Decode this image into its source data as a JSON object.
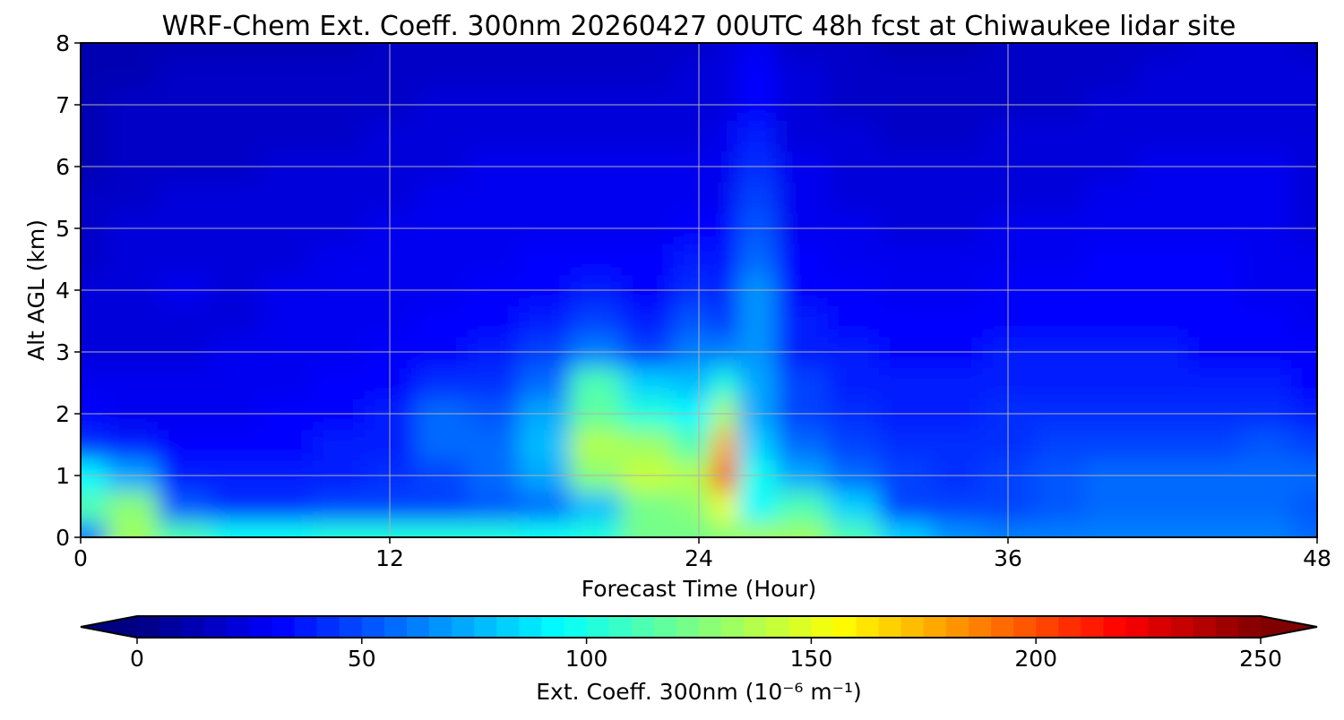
{
  "chart_data": {
    "type": "heatmap",
    "title": "WRF-Chem Ext. Coeff. 300nm  20260427 00UTC 48h fcst at Chiwaukee lidar site",
    "xlabel": "Forecast Time (Hour)",
    "ylabel": "Alt AGL (km)",
    "xlim": [
      0,
      48
    ],
    "ylim": [
      0,
      8
    ],
    "xticks": [
      0,
      12,
      24,
      36,
      48
    ],
    "yticks": [
      0,
      1,
      2,
      3,
      4,
      5,
      6,
      7,
      8
    ],
    "grid": true,
    "x": [
      0,
      2,
      4,
      6,
      8,
      10,
      12,
      14,
      16,
      18,
      20,
      22,
      24,
      25,
      26,
      28,
      30,
      32,
      34,
      36,
      38,
      40,
      42,
      44,
      46,
      48
    ],
    "y": [
      0,
      0.5,
      1,
      1.5,
      2,
      2.5,
      3,
      3.5,
      4,
      4.5,
      5,
      5.5,
      6,
      6.5,
      7,
      7.5,
      8
    ],
    "z": [
      [
        60,
        130,
        110,
        95,
        95,
        100,
        100,
        100,
        100,
        95,
        100,
        120,
        120,
        125,
        130,
        130,
        110,
        80,
        65,
        60,
        60,
        60,
        60,
        60,
        60,
        55
      ],
      [
        110,
        125,
        50,
        40,
        40,
        45,
        45,
        45,
        50,
        55,
        75,
        120,
        125,
        150,
        90,
        110,
        80,
        45,
        45,
        45,
        50,
        55,
        55,
        55,
        55,
        50
      ],
      [
        90,
        70,
        35,
        35,
        35,
        38,
        40,
        45,
        55,
        70,
        125,
        140,
        135,
        200,
        95,
        70,
        55,
        45,
        42,
        45,
        50,
        55,
        55,
        55,
        58,
        55
      ],
      [
        40,
        35,
        30,
        30,
        32,
        35,
        38,
        55,
        55,
        75,
        135,
        130,
        110,
        175,
        80,
        55,
        45,
        40,
        40,
        42,
        45,
        48,
        48,
        48,
        50,
        45
      ],
      [
        30,
        28,
        28,
        28,
        30,
        32,
        35,
        55,
        50,
        70,
        115,
        100,
        90,
        135,
        70,
        45,
        40,
        38,
        38,
        40,
        42,
        42,
        42,
        40,
        40,
        38
      ],
      [
        25,
        25,
        25,
        26,
        28,
        30,
        33,
        40,
        40,
        55,
        110,
        80,
        75,
        100,
        70,
        45,
        38,
        35,
        35,
        38,
        38,
        38,
        38,
        36,
        35,
        33
      ],
      [
        22,
        22,
        24,
        25,
        26,
        28,
        30,
        32,
        35,
        45,
        60,
        45,
        60,
        60,
        65,
        38,
        35,
        32,
        32,
        35,
        35,
        35,
        35,
        33,
        32,
        30
      ],
      [
        20,
        22,
        24,
        24,
        25,
        27,
        28,
        30,
        32,
        38,
        45,
        38,
        50,
        42,
        65,
        35,
        32,
        30,
        30,
        32,
        32,
        33,
        33,
        32,
        30,
        28
      ],
      [
        20,
        24,
        25,
        24,
        25,
        26,
        27,
        28,
        30,
        32,
        35,
        32,
        40,
        36,
        65,
        32,
        30,
        28,
        28,
        30,
        30,
        32,
        32,
        32,
        28,
        26
      ],
      [
        18,
        22,
        24,
        23,
        24,
        25,
        26,
        27,
        28,
        30,
        30,
        30,
        35,
        32,
        55,
        30,
        28,
        26,
        26,
        28,
        28,
        30,
        30,
        30,
        28,
        25
      ],
      [
        16,
        20,
        22,
        22,
        23,
        24,
        25,
        26,
        27,
        28,
        28,
        28,
        30,
        30,
        50,
        28,
        26,
        24,
        24,
        26,
        26,
        28,
        28,
        28,
        26,
        24
      ],
      [
        15,
        18,
        20,
        20,
        22,
        22,
        24,
        25,
        26,
        26,
        26,
        26,
        28,
        28,
        45,
        26,
        24,
        22,
        22,
        24,
        24,
        26,
        26,
        26,
        26,
        23
      ],
      [
        14,
        17,
        18,
        18,
        20,
        20,
        22,
        24,
        25,
        25,
        25,
        25,
        26,
        27,
        42,
        25,
        22,
        20,
        20,
        22,
        22,
        24,
        25,
        25,
        25,
        22
      ],
      [
        13,
        16,
        17,
        17,
        18,
        18,
        20,
        22,
        22,
        22,
        22,
        22,
        24,
        25,
        38,
        24,
        20,
        18,
        18,
        20,
        20,
        22,
        24,
        24,
        24,
        22
      ],
      [
        12,
        15,
        16,
        16,
        16,
        16,
        18,
        20,
        20,
        20,
        20,
        20,
        22,
        24,
        34,
        22,
        18,
        16,
        16,
        18,
        18,
        20,
        22,
        23,
        23,
        21
      ],
      [
        12,
        14,
        15,
        15,
        15,
        15,
        16,
        18,
        18,
        18,
        18,
        18,
        20,
        22,
        30,
        20,
        16,
        15,
        15,
        16,
        16,
        18,
        20,
        22,
        22,
        20
      ],
      [
        11,
        13,
        14,
        14,
        14,
        14,
        15,
        16,
        16,
        16,
        16,
        16,
        18,
        20,
        28,
        18,
        15,
        14,
        14,
        15,
        15,
        16,
        18,
        20,
        20,
        19
      ]
    ],
    "colorbar": {
      "label": "Ext. Coeff. 300nm  (10⁻⁶ m⁻¹)",
      "range": [
        0,
        250
      ],
      "levels_step": 5,
      "ticks": [
        0,
        50,
        100,
        150,
        200,
        250
      ],
      "extend": "both",
      "colormap": "jet",
      "placement": "bottom"
    }
  }
}
